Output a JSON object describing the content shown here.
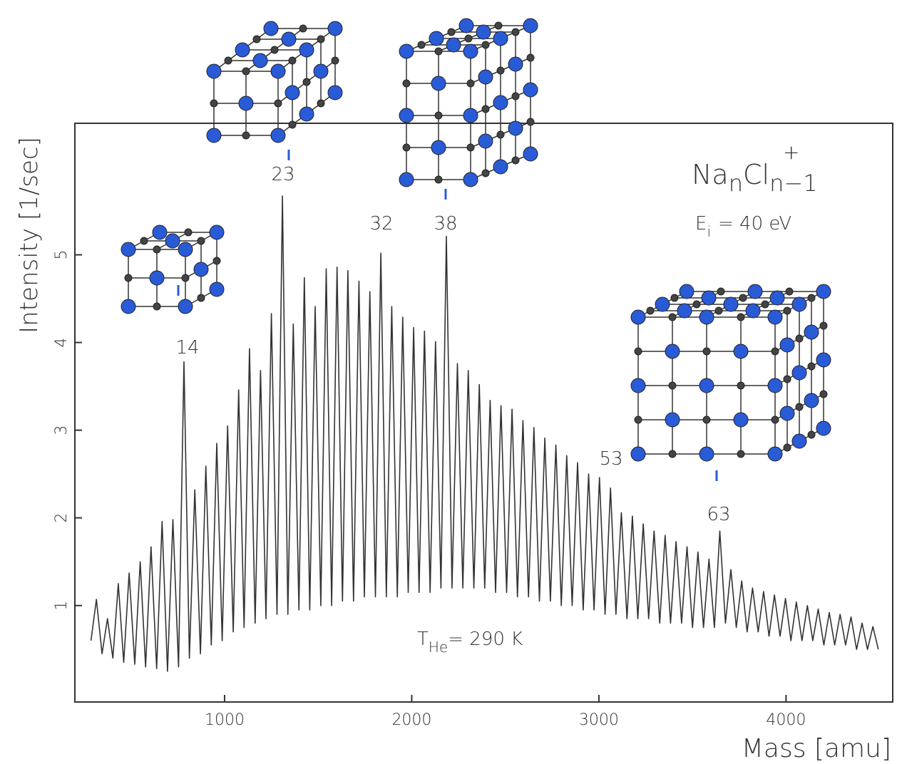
{
  "chart_data": {
    "type": "line",
    "x_label": "Mass [amu]",
    "y_label": "Intensity [1/sec]",
    "formula": {
      "na": "Na",
      "n1": "n",
      "cl": "Cl",
      "n2": "n−1",
      "charge": "+"
    },
    "energy": {
      "e": "E",
      "sub": "i",
      "text": "= 40 eV"
    },
    "temperature": {
      "t": "T",
      "sub": "He",
      "text": "= 290 K"
    },
    "annotations": [
      "14",
      "23",
      "32",
      "38",
      "53",
      "63"
    ],
    "color": "#333333",
    "xlim": [
      200,
      4570
    ],
    "ylim": [
      -0.1,
      6.5
    ],
    "xticks": [
      1000,
      2000,
      3000,
      4000
    ],
    "yticks": [
      1,
      2,
      3,
      4,
      5
    ],
    "grid": false,
    "x": [
      286,
      315,
      345,
      374,
      403,
      432,
      461,
      490,
      520,
      549,
      578,
      607,
      637,
      666,
      695,
      724,
      754,
      783,
      812,
      841,
      871,
      900,
      929,
      958,
      987,
      1016,
      1046,
      1075,
      1104,
      1133,
      1163,
      1192,
      1221,
      1250,
      1280,
      1309,
      1338,
      1367,
      1397,
      1426,
      1455,
      1484,
      1514,
      1543,
      1572,
      1601,
      1630,
      1659,
      1689,
      1718,
      1747,
      1776,
      1806,
      1835,
      1864,
      1893,
      1923,
      1952,
      1981,
      2010,
      2039,
      2068,
      2098,
      2127,
      2156,
      2185,
      2215,
      2244,
      2273,
      2302,
      2332,
      2361,
      2390,
      2419,
      2448,
      2477,
      2507,
      2536,
      2565,
      2594,
      2624,
      2653,
      2682,
      2711,
      2741,
      2770,
      2799,
      2828,
      2857,
      2886,
      2916,
      2945,
      2974,
      3003,
      3033,
      3062,
      3091,
      3120,
      3150,
      3179,
      3208,
      3237,
      3266,
      3295,
      3325,
      3354,
      3383,
      3412,
      3442,
      3471,
      3500,
      3529,
      3559,
      3588,
      3617,
      3646,
      3676,
      3705,
      3734,
      3763,
      3792,
      3821,
      3851,
      3880,
      3909,
      3938,
      3968,
      3997,
      4026,
      4055,
      4085,
      4114,
      4143,
      4172,
      4202,
      4231,
      4260,
      4289,
      4318,
      4347,
      4377,
      4406,
      4435,
      4464,
      4493
    ],
    "values": [
      0.6,
      1.07,
      0.45,
      0.85,
      0.4,
      1.25,
      0.35,
      1.37,
      0.33,
      1.5,
      0.3,
      1.67,
      0.28,
      1.96,
      0.25,
      1.98,
      0.3,
      3.78,
      0.4,
      2.32,
      0.45,
      2.59,
      0.55,
      2.85,
      0.6,
      3.05,
      0.7,
      3.46,
      0.75,
      3.93,
      0.8,
      3.68,
      0.85,
      4.33,
      0.9,
      5.67,
      0.9,
      4.21,
      0.95,
      4.74,
      0.95,
      4.41,
      1.0,
      4.84,
      1.0,
      4.86,
      1.05,
      4.82,
      1.05,
      4.7,
      1.1,
      4.58,
      1.1,
      5.02,
      1.1,
      4.41,
      1.1,
      4.29,
      1.15,
      4.17,
      1.15,
      4.13,
      1.15,
      4.01,
      1.2,
      5.21,
      1.2,
      3.76,
      1.2,
      3.68,
      1.2,
      3.52,
      1.2,
      3.34,
      1.15,
      3.28,
      1.15,
      3.24,
      1.1,
      3.11,
      1.1,
      3.03,
      1.05,
      2.91,
      1.05,
      2.83,
      1.0,
      2.71,
      1.0,
      2.63,
      0.95,
      2.5,
      0.95,
      2.46,
      0.9,
      2.34,
      0.9,
      2.06,
      0.85,
      2.02,
      0.85,
      1.93,
      0.85,
      1.85,
      0.8,
      1.8,
      0.8,
      1.73,
      0.8,
      1.67,
      0.75,
      1.61,
      0.75,
      1.53,
      0.75,
      1.85,
      0.8,
      1.41,
      0.75,
      1.28,
      0.7,
      1.2,
      0.7,
      1.16,
      0.65,
      1.12,
      0.65,
      1.08,
      0.6,
      1.04,
      0.6,
      1.0,
      0.6,
      0.96,
      0.55,
      0.92,
      0.55,
      0.9,
      0.55,
      0.87,
      0.5,
      0.8,
      0.5,
      0.76,
      0.5
    ]
  }
}
